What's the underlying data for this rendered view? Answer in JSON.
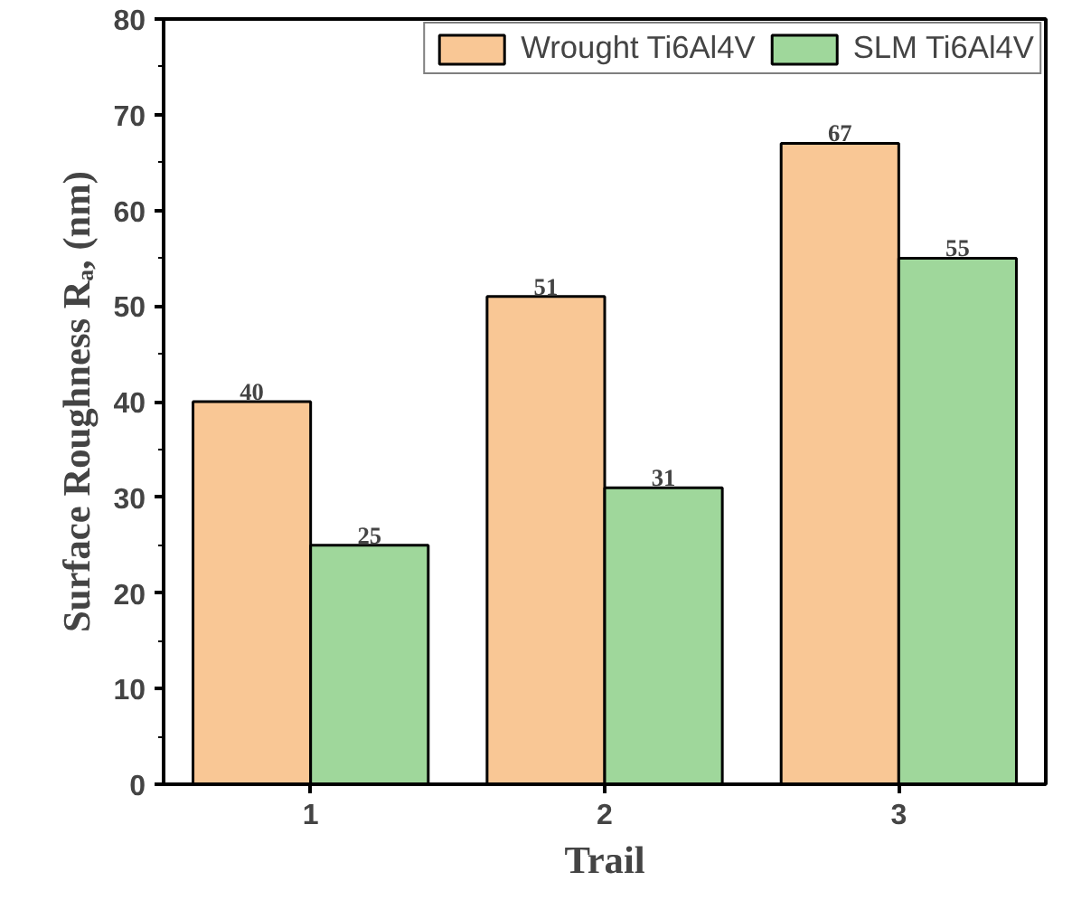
{
  "chart_data": {
    "type": "bar",
    "xlabel": "Trail",
    "ylabel": "Surface Roughness Rₐ, (nm)",
    "categories": [
      "1",
      "2",
      "3"
    ],
    "series": [
      {
        "name": "Wrought Ti6Al4V",
        "color": "#f9c795",
        "values": [
          40,
          51,
          67
        ]
      },
      {
        "name": "SLM Ti6Al4V",
        "color": "#9fd79b",
        "values": [
          25,
          31,
          55
        ]
      }
    ],
    "ylim": [
      0,
      80
    ],
    "yticks": [
      0,
      10,
      20,
      30,
      40,
      50,
      60,
      70,
      80
    ],
    "data_labels": true,
    "legend": "top right",
    "grid": false
  }
}
